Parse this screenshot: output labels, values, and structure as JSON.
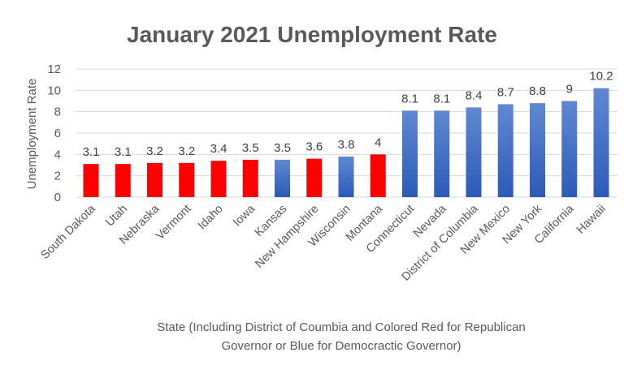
{
  "chart_data": {
    "type": "bar",
    "title": "January 2021 Unemployment Rate",
    "ylabel": "Unemployment Rate",
    "xlabel_lines": [
      "State (Including District of Coumbia and Colored Red for Republican",
      "Governor or Blue for Democractic Governor)"
    ],
    "ylim": [
      0,
      12
    ],
    "yticks": [
      0,
      2,
      4,
      6,
      8,
      10,
      12
    ],
    "grid": true,
    "categories": [
      "South Dakota",
      "Utah",
      "Nebraska",
      "Vermont",
      "Idaho",
      "Iowa",
      "Kansas",
      "New Hampshire",
      "Wisconsin",
      "Montana",
      "Connecticut",
      "Nevada",
      "District of Columbia",
      "New Mexico",
      "New York",
      "California",
      "Hawaii"
    ],
    "values": [
      3.1,
      3.1,
      3.2,
      3.2,
      3.4,
      3.5,
      3.5,
      3.6,
      3.8,
      4,
      8.1,
      8.1,
      8.4,
      8.7,
      8.8,
      9,
      10.2
    ],
    "party": [
      "R",
      "R",
      "R",
      "R",
      "R",
      "R",
      "D",
      "R",
      "D",
      "R",
      "D",
      "D",
      "D",
      "D",
      "D",
      "D",
      "D"
    ],
    "colors": {
      "R": "#FF0000",
      "D": "#4472C4"
    }
  }
}
